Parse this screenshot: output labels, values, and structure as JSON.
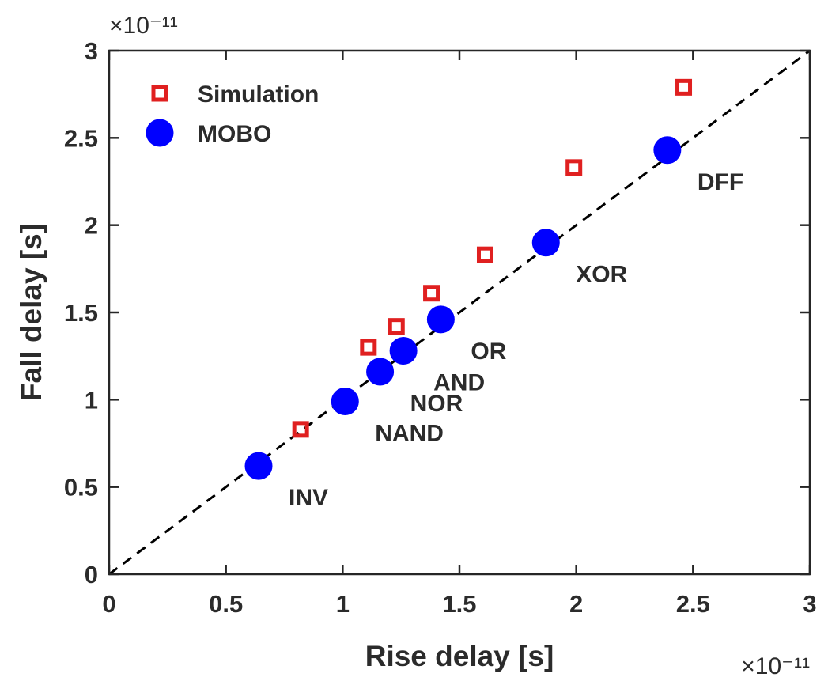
{
  "chart_data": {
    "type": "scatter",
    "xlabel": "Rise delay [s]",
    "ylabel": "Fall delay [s]",
    "x_exponent_label": "×10⁻¹¹",
    "y_exponent_label": "×10⁻¹¹",
    "xlim": [
      0,
      3
    ],
    "ylim": [
      0,
      3
    ],
    "x_ticks": [
      0,
      0.5,
      1,
      1.5,
      2,
      2.5,
      3
    ],
    "y_ticks": [
      0,
      0.5,
      1,
      1.5,
      2,
      2.5,
      3
    ],
    "x_tick_labels": [
      "0",
      "0.5",
      "1",
      "1.5",
      "2",
      "2.5",
      "3"
    ],
    "y_tick_labels": [
      "0",
      "0.5",
      "1",
      "1.5",
      "2",
      "2.5",
      "3"
    ],
    "grid": false,
    "legend_position": "top-left",
    "reference_line": {
      "style": "dashed",
      "color": "#000000",
      "from": [
        0,
        0
      ],
      "to": [
        3,
        3
      ]
    },
    "series": [
      {
        "name": "Simulation",
        "marker": "square-open",
        "color": "#e02020",
        "points": [
          {
            "x": 0.82,
            "y": 0.83
          },
          {
            "x": 1.11,
            "y": 1.3
          },
          {
            "x": 1.23,
            "y": 1.42
          },
          {
            "x": 1.38,
            "y": 1.61
          },
          {
            "x": 1.61,
            "y": 1.83
          },
          {
            "x": 1.99,
            "y": 2.33
          },
          {
            "x": 2.46,
            "y": 2.79
          }
        ]
      },
      {
        "name": "MOBO",
        "marker": "circle-filled",
        "color": "#0000ff",
        "points": [
          {
            "x": 0.64,
            "y": 0.62,
            "label": "INV"
          },
          {
            "x": 1.01,
            "y": 0.99,
            "label": "NAND"
          },
          {
            "x": 1.16,
            "y": 1.16,
            "label": "NOR"
          },
          {
            "x": 1.26,
            "y": 1.28,
            "label": "AND"
          },
          {
            "x": 1.42,
            "y": 1.46,
            "label": "OR"
          },
          {
            "x": 1.87,
            "y": 1.9,
            "label": "XOR"
          },
          {
            "x": 2.39,
            "y": 2.43,
            "label": "DFF"
          }
        ]
      }
    ]
  }
}
